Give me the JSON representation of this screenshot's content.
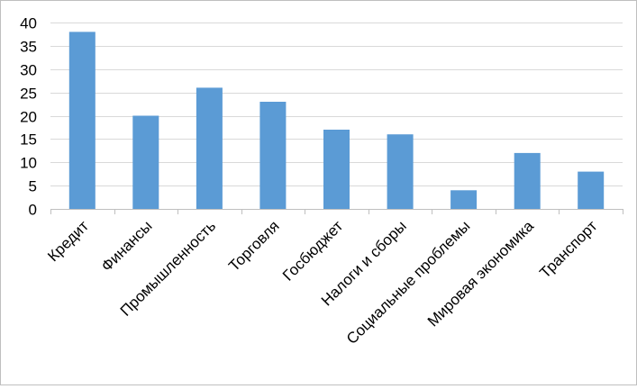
{
  "chart_data": {
    "type": "bar",
    "categories": [
      "Кредит",
      "Финансы",
      "Промышленность",
      "Торговля",
      "Госбюджет",
      "Налоги и сборы",
      "Социальные проблемы",
      "Мировая экономика",
      "Транспорт"
    ],
    "values": [
      38,
      20,
      26,
      23,
      17,
      16,
      4,
      12,
      8
    ],
    "ylim": [
      0,
      40
    ],
    "yticks": [
      "0",
      "5",
      "10",
      "15",
      "20",
      "25",
      "30",
      "35",
      "40"
    ],
    "grid": true,
    "legend": "none",
    "bar_color": "#5b9bd5",
    "grid_color": "#d9d9d9",
    "axis_color": "#bfbfbf"
  }
}
